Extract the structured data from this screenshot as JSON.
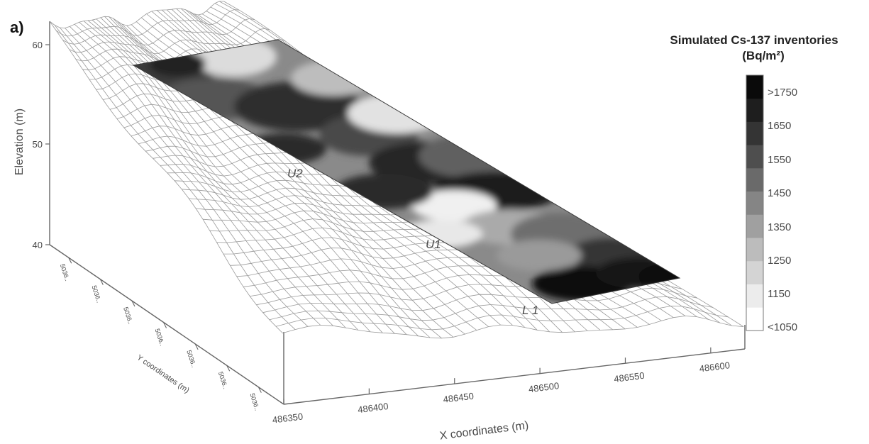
{
  "chart_data": {
    "type": "surface3d",
    "panel_label": "a)",
    "xlabel": "X coordinates (m)",
    "ylabel": "Y coordinates (m)",
    "zlabel": "Elevation (m)",
    "x_ticks": [
      "486350",
      "486400",
      "486450",
      "486500",
      "486550",
      "486600"
    ],
    "y_ticks": [
      "5036..",
      "5036..",
      "5036..",
      "5036..",
      "5036..",
      "5036..",
      "5036.."
    ],
    "z_ticks": [
      "40",
      "50",
      "60"
    ],
    "xlim": [
      486350,
      486620
    ],
    "zlim": [
      40,
      62
    ],
    "grid": false,
    "annotations": [
      {
        "text": "U2"
      },
      {
        "text": "U1"
      },
      {
        "text": "L 1"
      }
    ],
    "legend": {
      "title_line1": "Simulated Cs-137 inventories",
      "title_line2": "(Bq/m²)",
      "placement": "right",
      "levels": [
        "<1050",
        "1150",
        "1250",
        "1350",
        "1450",
        "1550",
        "1650",
        ">1750"
      ],
      "colors": [
        "#ffffff",
        "#ececec",
        "#d4d4d4",
        "#bcbcbc",
        "#a0a0a0",
        "#858585",
        "#6a6a6a",
        "#4e4e4e",
        "#343434",
        "#1e1e1e",
        "#0a0a0a"
      ]
    }
  }
}
